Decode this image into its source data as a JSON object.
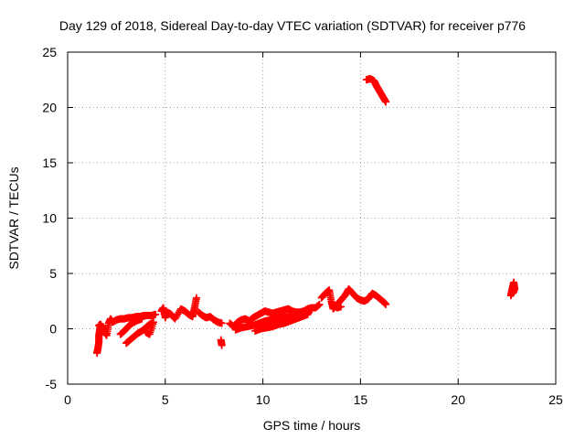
{
  "chart_data": {
    "type": "scatter",
    "title": "Day 129 of 2018, Sidereal Day-to-day VTEC variation (SDTVAR) for receiver p776",
    "xlabel": "GPS time / hours",
    "ylabel": "SDTVAR / TECUs",
    "xlim": [
      0,
      25
    ],
    "ylim": [
      -5,
      25
    ],
    "xticks": [
      0,
      5,
      10,
      15,
      20,
      25
    ],
    "yticks": [
      -5,
      0,
      5,
      10,
      15,
      20,
      25
    ],
    "grid": true,
    "marker": "plus",
    "color": "#ff0000",
    "series": [
      {
        "points": [
          [
            1.5,
            -2.2
          ],
          [
            1.55,
            -1.8
          ],
          [
            1.6,
            -1.2
          ],
          [
            1.6,
            -0.6
          ],
          [
            1.65,
            0.0
          ],
          [
            1.7,
            0.4
          ],
          [
            1.6,
            0.3
          ],
          [
            1.8,
            0.2
          ],
          [
            1.9,
            -0.3
          ],
          [
            2.0,
            -0.6
          ],
          [
            2.1,
            0.5
          ],
          [
            2.2,
            0.9
          ],
          [
            2.3,
            0.6
          ],
          [
            2.5,
            0.8
          ],
          [
            2.7,
            0.9
          ],
          [
            2.9,
            0.9
          ],
          [
            3.1,
            1.0
          ],
          [
            3.3,
            1.0
          ],
          [
            3.5,
            1.1
          ],
          [
            3.7,
            1.1
          ],
          [
            3.9,
            1.2
          ],
          [
            4.1,
            1.2
          ],
          [
            4.3,
            1.2
          ],
          [
            4.5,
            1.3
          ],
          [
            2.7,
            -0.5
          ],
          [
            2.9,
            -0.2
          ],
          [
            3.1,
            0.2
          ],
          [
            3.3,
            0.5
          ],
          [
            3.5,
            0.7
          ],
          [
            3.8,
            0.9
          ],
          [
            3.0,
            -1.3
          ],
          [
            3.2,
            -1.0
          ],
          [
            3.4,
            -0.7
          ],
          [
            3.6,
            -0.4
          ],
          [
            3.8,
            -0.2
          ],
          [
            4.0,
            0.1
          ],
          [
            4.2,
            0.4
          ],
          [
            4.4,
            0.6
          ],
          [
            4.2,
            -0.5
          ],
          [
            4.0,
            -0.3
          ],
          [
            4.8,
            1.6
          ],
          [
            4.9,
            1.9
          ],
          [
            5.0,
            1.0
          ],
          [
            5.1,
            1.5
          ],
          [
            5.3,
            1.3
          ],
          [
            5.5,
            0.9
          ],
          [
            5.8,
            1.8
          ],
          [
            6.0,
            1.6
          ],
          [
            6.2,
            1.3
          ],
          [
            6.4,
            1.1
          ],
          [
            6.5,
            1.9
          ],
          [
            6.6,
            2.8
          ],
          [
            6.7,
            1.5
          ],
          [
            6.9,
            1.2
          ],
          [
            7.1,
            1.0
          ],
          [
            7.3,
            1.1
          ],
          [
            7.5,
            0.8
          ],
          [
            7.7,
            0.6
          ],
          [
            7.9,
            0.5
          ],
          [
            7.85,
            -1.0
          ],
          [
            7.9,
            -1.5
          ],
          [
            8.3,
            0.5
          ],
          [
            8.5,
            0.2
          ],
          [
            8.7,
            0.6
          ],
          [
            8.9,
            0.8
          ],
          [
            9.1,
            0.9
          ],
          [
            9.3,
            0.7
          ],
          [
            9.5,
            1.0
          ],
          [
            9.7,
            1.2
          ],
          [
            9.9,
            1.4
          ],
          [
            10.1,
            1.6
          ],
          [
            10.3,
            1.5
          ],
          [
            10.5,
            1.4
          ],
          [
            10.7,
            1.5
          ],
          [
            10.9,
            1.6
          ],
          [
            11.1,
            1.7
          ],
          [
            11.3,
            1.8
          ],
          [
            11.5,
            1.6
          ],
          [
            11.7,
            1.5
          ],
          [
            11.9,
            1.5
          ],
          [
            12.1,
            1.6
          ],
          [
            12.3,
            1.8
          ],
          [
            12.5,
            1.9
          ],
          [
            12.7,
            1.9
          ],
          [
            12.9,
            2.2
          ],
          [
            8.6,
            -0.1
          ],
          [
            8.9,
            0.1
          ],
          [
            9.2,
            0.2
          ],
          [
            9.5,
            0.3
          ],
          [
            9.8,
            0.5
          ],
          [
            10.1,
            0.7
          ],
          [
            10.4,
            0.8
          ],
          [
            10.7,
            0.9
          ],
          [
            11.0,
            1.0
          ],
          [
            11.3,
            1.1
          ],
          [
            11.6,
            1.2
          ],
          [
            11.9,
            1.4
          ],
          [
            12.2,
            1.5
          ],
          [
            12.5,
            1.7
          ],
          [
            9.6,
            -0.2
          ],
          [
            9.9,
            0.0
          ],
          [
            10.2,
            0.1
          ],
          [
            10.5,
            0.2
          ],
          [
            10.8,
            0.4
          ],
          [
            11.1,
            0.5
          ],
          [
            11.4,
            0.7
          ],
          [
            11.7,
            0.9
          ],
          [
            12.0,
            1.1
          ],
          [
            12.3,
            1.3
          ],
          [
            13.0,
            2.8
          ],
          [
            13.2,
            3.2
          ],
          [
            13.4,
            3.5
          ],
          [
            13.5,
            2.5
          ],
          [
            13.6,
            1.8
          ],
          [
            13.8,
            2.2
          ],
          [
            14.0,
            2.6
          ],
          [
            14.2,
            3.0
          ],
          [
            14.4,
            3.6
          ],
          [
            14.6,
            3.2
          ],
          [
            14.8,
            2.8
          ],
          [
            15.0,
            2.6
          ],
          [
            15.2,
            2.5
          ],
          [
            15.4,
            2.7
          ],
          [
            15.6,
            3.2
          ],
          [
            15.8,
            3.0
          ],
          [
            16.0,
            2.7
          ],
          [
            16.2,
            2.4
          ],
          [
            16.3,
            2.2
          ],
          [
            13.6,
            2.2
          ],
          [
            13.8,
            1.9
          ],
          [
            14.0,
            2.0
          ],
          [
            15.3,
            22.5
          ],
          [
            15.5,
            22.6
          ],
          [
            15.7,
            22.4
          ],
          [
            15.8,
            22.0
          ],
          [
            15.9,
            21.7
          ],
          [
            16.0,
            21.4
          ],
          [
            16.1,
            21.1
          ],
          [
            16.2,
            20.8
          ],
          [
            16.3,
            20.5
          ],
          [
            22.7,
            3.0
          ],
          [
            22.75,
            3.4
          ],
          [
            22.8,
            3.8
          ],
          [
            22.85,
            4.2
          ],
          [
            22.9,
            3.6
          ],
          [
            22.8,
            3.2
          ]
        ]
      }
    ]
  }
}
